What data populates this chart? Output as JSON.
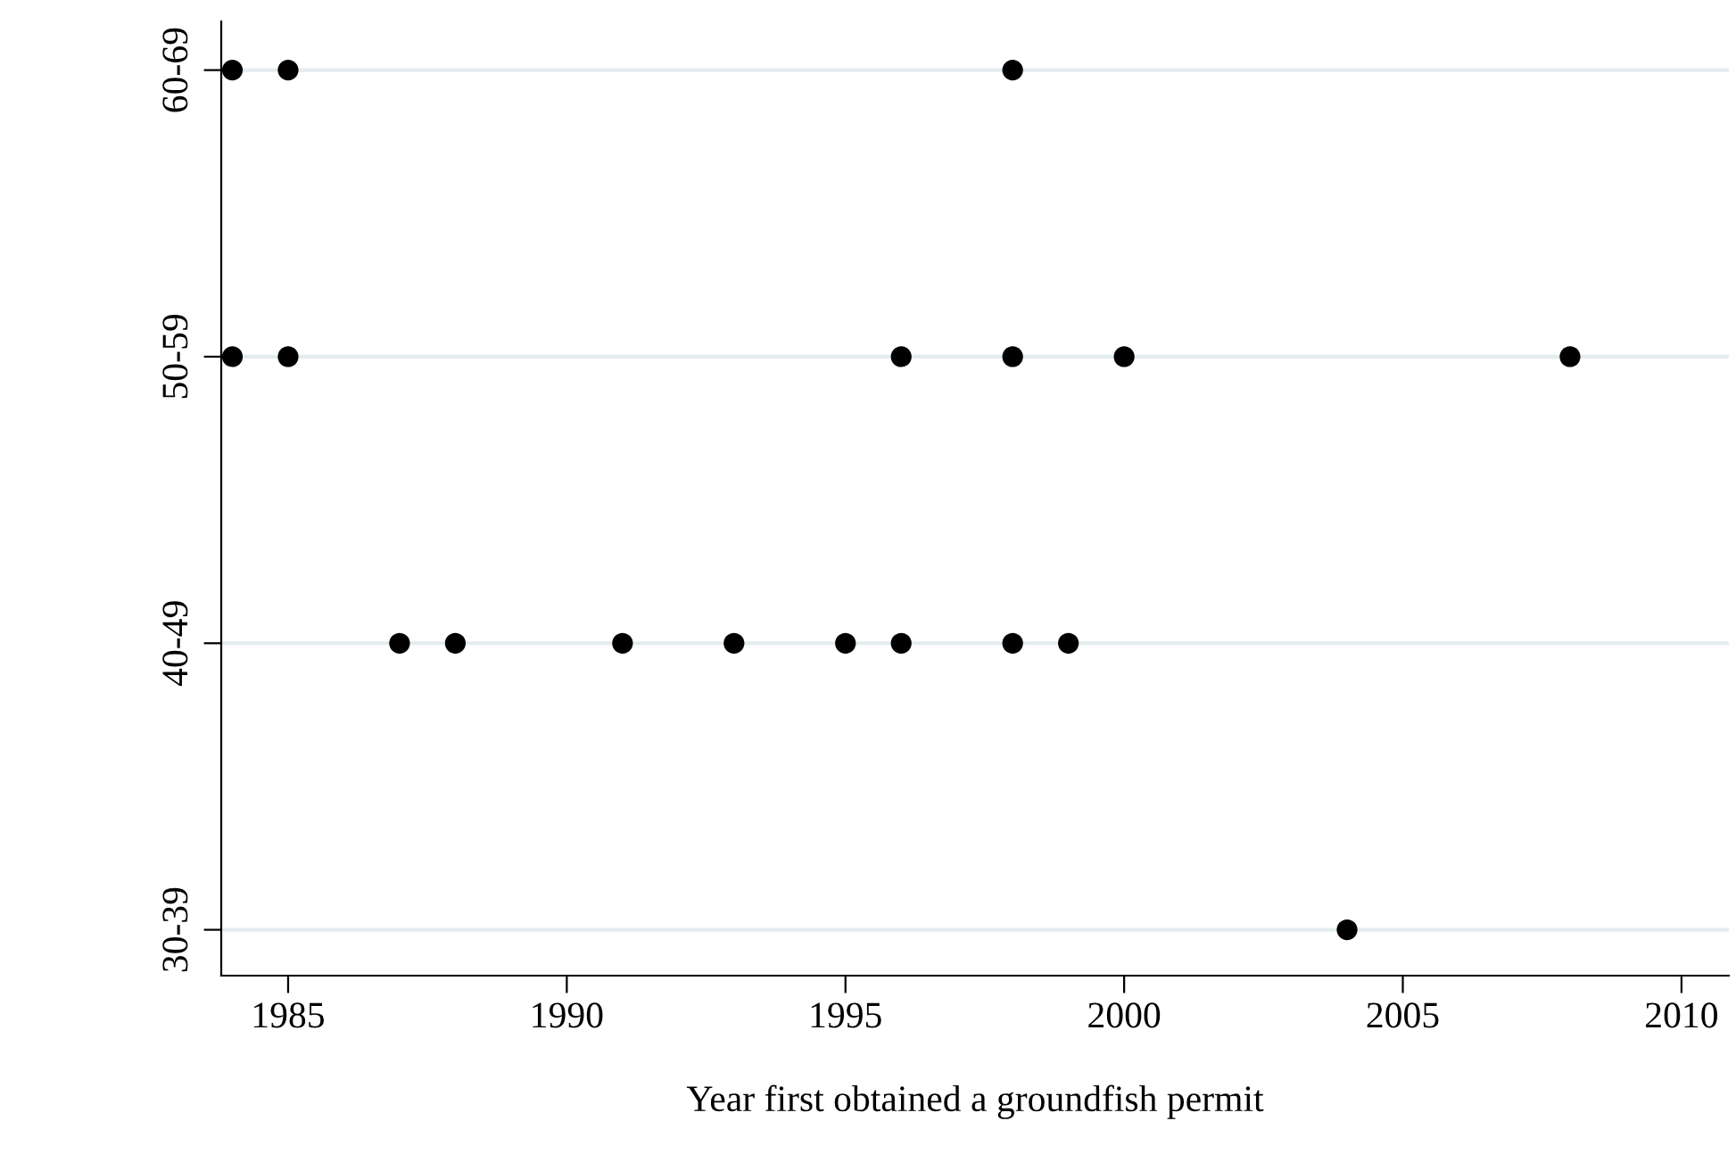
{
  "chart_data": {
    "type": "scatter",
    "orientation": "horizontal",
    "xlabel": "Year first obtained a groundfish permit",
    "categories": [
      "60-69",
      "50-59",
      "40-49",
      "30-39"
    ],
    "series": [
      {
        "color": "#000000",
        "values": [
          1984,
          1984,
          1987,
          2004
        ]
      },
      {
        "color": "#000000",
        "values": [
          1985,
          1985,
          1988,
          null
        ]
      },
      {
        "color": "#000000",
        "values": [
          1998,
          1996,
          1991,
          null
        ]
      },
      {
        "color": "#000000",
        "values": [
          null,
          1998,
          1993,
          null
        ]
      },
      {
        "color": "#000000",
        "values": [
          null,
          2000,
          1995,
          null
        ]
      },
      {
        "color": "#000000",
        "values": [
          null,
          2008,
          1996,
          null
        ]
      },
      {
        "color": "#000000",
        "values": [
          null,
          null,
          1998,
          null
        ]
      },
      {
        "color": "#000000",
        "values": [
          null,
          null,
          1999,
          null
        ]
      }
    ],
    "marker": "circle",
    "xlim": [
      1983.8,
      2010.85
    ],
    "xticks": [
      1985,
      1990,
      1995,
      2000,
      2005,
      2010
    ],
    "grid": "y"
  }
}
